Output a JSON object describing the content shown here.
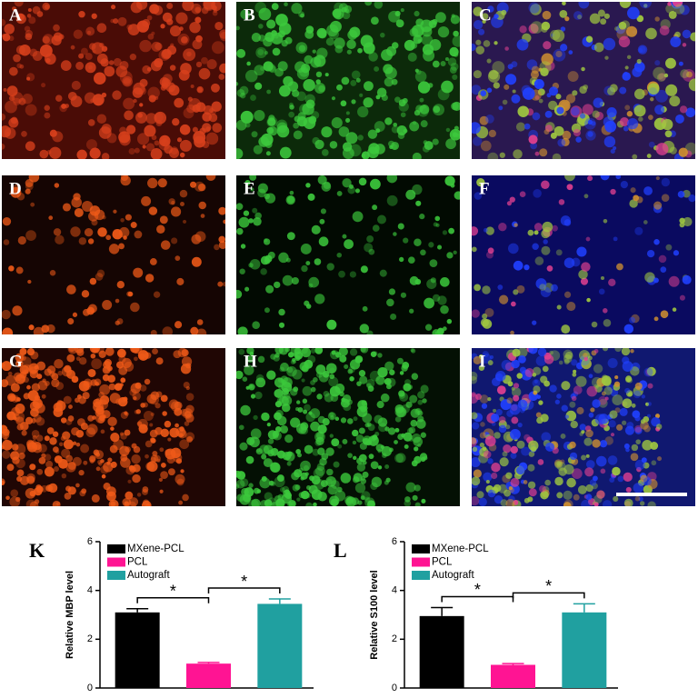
{
  "panel_labels": [
    "A",
    "B",
    "C",
    "D",
    "E",
    "F",
    "G",
    "H",
    "I"
  ],
  "chart_data": [
    {
      "type": "bar",
      "panel_label": "K",
      "ylabel": "Relative MBP level",
      "ylim": [
        0,
        6
      ],
      "yticks": [
        0,
        2,
        4,
        6
      ],
      "series": [
        {
          "name": "MXene-PCL",
          "color": "#000000",
          "values": [
            3.1
          ],
          "errors": [
            0.15
          ]
        },
        {
          "name": "PCL",
          "color": "#ff1493",
          "values": [
            1.0
          ],
          "errors": [
            0.05
          ]
        },
        {
          "name": "Autograft",
          "color": "#20a0a0",
          "values": [
            3.45
          ],
          "errors": [
            0.2
          ]
        }
      ],
      "annotations": [
        "*",
        "*"
      ]
    },
    {
      "type": "bar",
      "panel_label": "L",
      "ylabel": "Relative S100 level",
      "ylim": [
        0,
        6
      ],
      "yticks": [
        0,
        2,
        4,
        6
      ],
      "series": [
        {
          "name": "MXene-PCL",
          "color": "#000000",
          "values": [
            2.95
          ],
          "errors": [
            0.35
          ]
        },
        {
          "name": "PCL",
          "color": "#ff1493",
          "values": [
            0.95
          ],
          "errors": [
            0.05
          ]
        },
        {
          "name": "Autograft",
          "color": "#20a0a0",
          "values": [
            3.1
          ],
          "errors": [
            0.35
          ]
        }
      ],
      "annotations": [
        "*",
        "*"
      ]
    }
  ]
}
